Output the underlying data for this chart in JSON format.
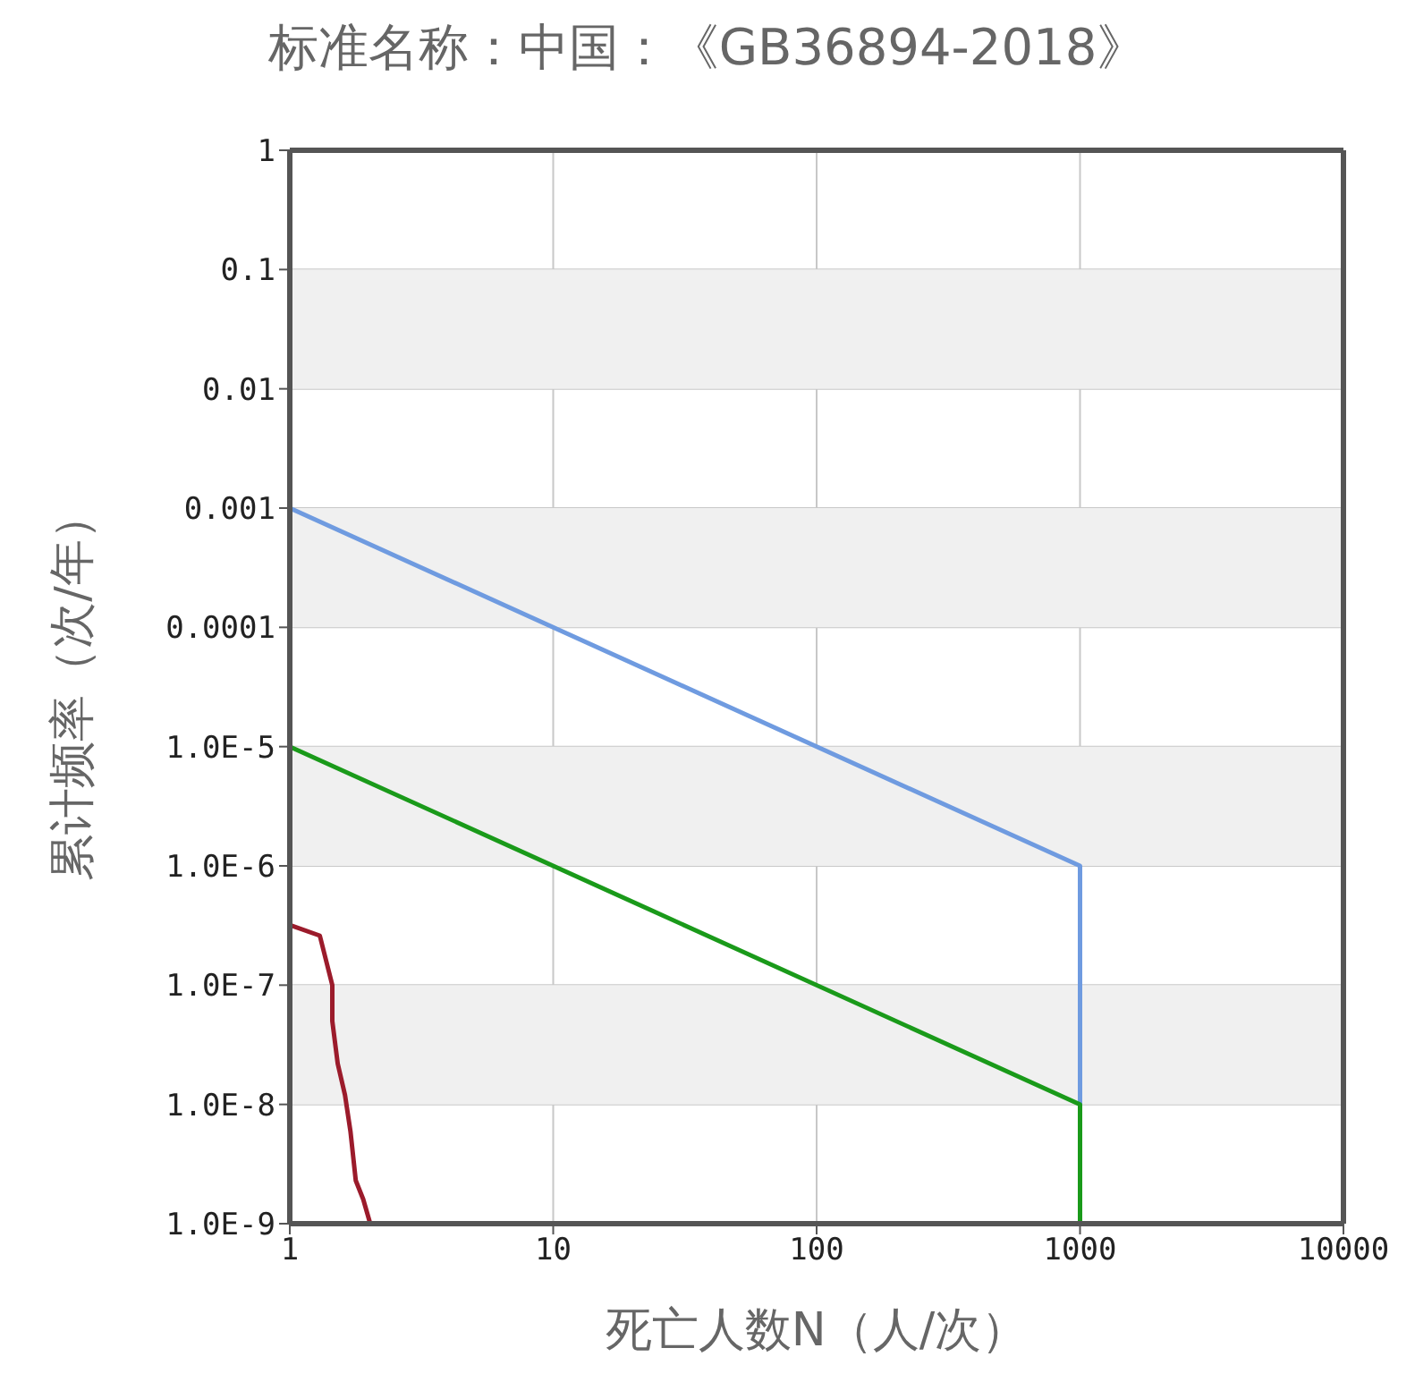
{
  "chart_data": {
    "type": "line",
    "title": "标准名称：中国：《GB36894-2018》",
    "xlabel": "死亡人数N（人/次）",
    "ylabel": "累计频率（次/年）",
    "log": "xy",
    "grid": true,
    "marker": "none",
    "line_style": "solid",
    "xlim": [
      1,
      10000
    ],
    "xticks": [
      1,
      10,
      100,
      1000,
      10000
    ],
    "ylim": [
      1e-09,
      1
    ],
    "yticks": [
      1,
      0.1,
      0.01,
      0.001,
      0.0001,
      {
        "value": 1e-05,
        "label": "1.0E-5"
      },
      {
        "value": 1e-06,
        "label": "1.0E-6"
      },
      {
        "value": 1e-07,
        "label": "1.0E-7"
      },
      {
        "value": 1e-08,
        "label": "1.0E-8"
      },
      {
        "value": 1e-09,
        "label": "1.0E-9"
      }
    ],
    "bands": [
      {
        "axis": "y",
        "from": 0.01,
        "to": 0.1,
        "color": "#f0f0f0"
      },
      {
        "axis": "y",
        "from": 0.0001,
        "to": 0.001,
        "color": "#f0f0f0"
      },
      {
        "axis": "y",
        "from": 1e-06,
        "to": 1e-05,
        "color": "#f0f0f0"
      },
      {
        "axis": "y",
        "from": 1e-08,
        "to": 1e-07,
        "color": "#f0f0f0"
      }
    ],
    "series": [
      {
        "color": "#6f9be0",
        "x": [
          1,
          1000,
          1000
        ],
        "values": [
          0.001,
          1e-06,
          1e-09
        ]
      },
      {
        "color": "#1a9a1a",
        "x": [
          1,
          1000,
          1000
        ],
        "values": [
          1e-05,
          1e-08,
          1e-09
        ]
      },
      {
        "color": "#9b1b2b",
        "x": [
          1,
          1.3,
          1.45,
          1.45,
          1.52,
          1.62,
          1.7,
          1.78,
          1.9,
          2.02
        ],
        "values": [
          3.2e-07,
          2.6e-07,
          1e-07,
          5e-08,
          2.2e-08,
          1.2e-08,
          5.9e-09,
          2.3e-09,
          1.6e-09,
          1e-09
        ]
      }
    ]
  }
}
